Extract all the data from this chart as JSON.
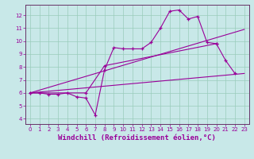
{
  "background_color": "#c8e8e8",
  "grid_color": "#99ccbb",
  "line_color": "#990099",
  "spine_color": "#663366",
  "xlabel": "Windchill (Refroidissement éolien,°C)",
  "xlabel_fontsize": 6.5,
  "tick_fontsize": 5,
  "ylabel_ticks": [
    4,
    5,
    6,
    7,
    8,
    9,
    10,
    11,
    12
  ],
  "xlabel_ticks": [
    0,
    1,
    2,
    3,
    4,
    5,
    6,
    7,
    8,
    9,
    10,
    11,
    12,
    13,
    14,
    15,
    16,
    17,
    18,
    19,
    20,
    21,
    22,
    23
  ],
  "xlim": [
    -0.5,
    23.5
  ],
  "ylim": [
    3.6,
    12.8
  ],
  "series1_x": [
    0,
    1,
    2,
    3,
    4,
    5,
    6,
    7,
    8,
    9,
    10,
    11,
    12,
    13,
    14,
    15,
    16,
    17,
    18,
    19,
    20
  ],
  "series1_y": [
    6.0,
    6.0,
    5.9,
    5.9,
    6.0,
    5.7,
    5.6,
    4.3,
    7.8,
    9.5,
    9.4,
    9.4,
    9.4,
    9.9,
    11.0,
    12.3,
    12.4,
    11.7,
    11.9,
    9.9,
    9.8
  ],
  "series2_x": [
    0,
    6,
    8,
    20,
    21,
    22
  ],
  "series2_y": [
    6.0,
    6.0,
    8.1,
    9.8,
    8.5,
    7.5
  ],
  "trend1_x": [
    0,
    23
  ],
  "trend1_y": [
    6.0,
    7.5
  ],
  "trend2_x": [
    0,
    23
  ],
  "trend2_y": [
    6.0,
    10.9
  ]
}
